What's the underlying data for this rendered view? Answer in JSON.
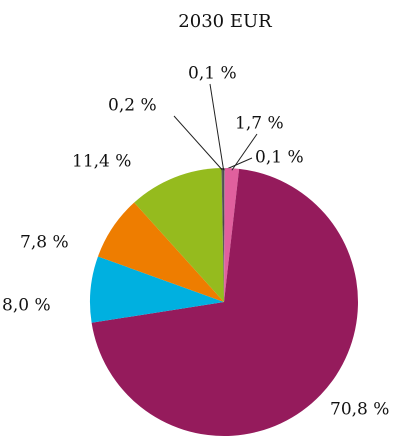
{
  "chart_data": {
    "type": "pie",
    "title": "2030 EUR",
    "categories": null,
    "values": [
      0.1,
      1.7,
      70.8,
      8.0,
      7.8,
      11.4,
      0.2,
      0.1
    ],
    "value_labels": [
      "0,1 %",
      "1,7 %",
      "70,8 %",
      "8,0 %",
      "7,8 %",
      "11,4 %",
      "0,2 %",
      "0,1 %"
    ],
    "colors": [
      "#7a7a7a",
      "#e0609e",
      "#951b5c",
      "#00b0e0",
      "#ee7d00",
      "#95bb1e",
      "#5b5b5b",
      "#333333"
    ]
  }
}
